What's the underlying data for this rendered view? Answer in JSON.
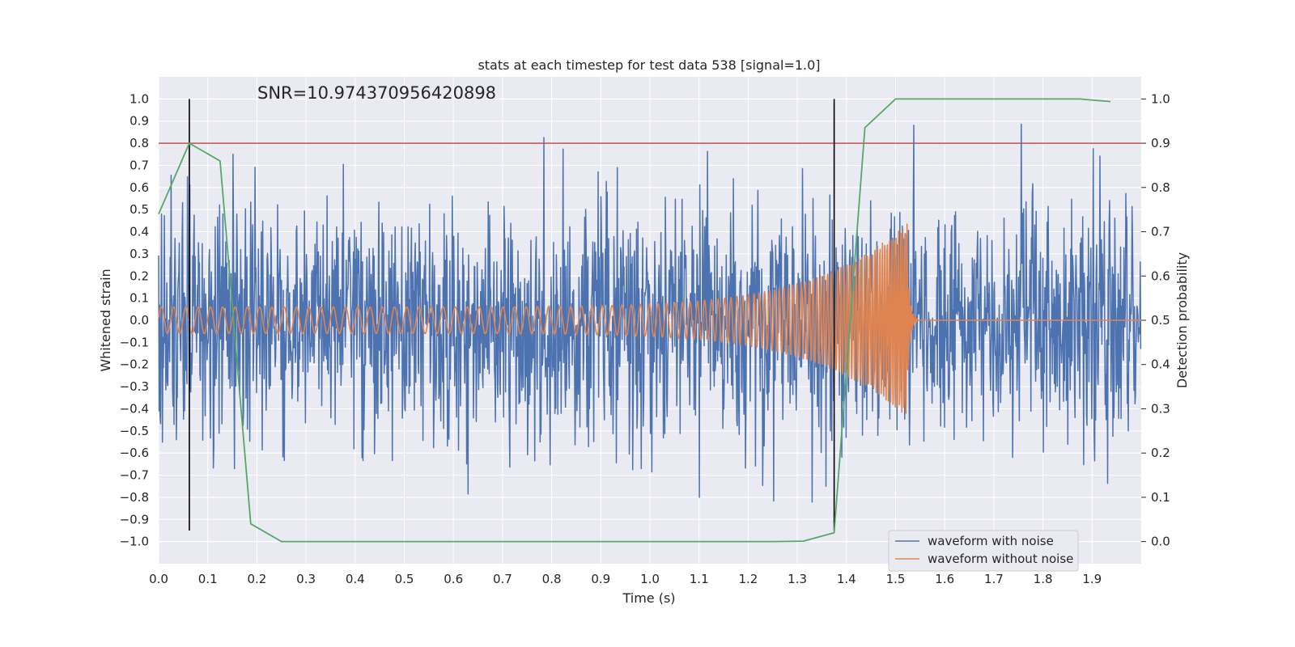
{
  "chart_data": {
    "type": "line",
    "title": "stats at each timestep for test data 538 [signal=1.0]",
    "xlabel": "Time (s)",
    "ylabel": "Whitened strain",
    "ylabel_right": "Detection probability",
    "annotation": "SNR=10.974370956420898",
    "xlim": [
      0.0,
      2.0
    ],
    "ylim": [
      -1.1,
      1.1
    ],
    "ylim_right": [
      -0.05,
      1.05
    ],
    "x_ticks": [
      "0.0",
      "0.1",
      "0.2",
      "0.3",
      "0.4",
      "0.5",
      "0.6",
      "0.7",
      "0.8",
      "0.9",
      "1.0",
      "1.1",
      "1.2",
      "1.3",
      "1.4",
      "1.5",
      "1.6",
      "1.7",
      "1.8",
      "1.9"
    ],
    "y_ticks": [
      "1.0",
      "0.9",
      "0.8",
      "0.7",
      "0.6",
      "0.5",
      "0.4",
      "0.3",
      "0.2",
      "0.1",
      "0.0",
      "−0.1",
      "−0.2",
      "−0.3",
      "−0.4",
      "−0.5",
      "−0.6",
      "−0.7",
      "−0.8",
      "−0.9",
      "−1.0"
    ],
    "y_ticks_right": [
      "1.0",
      "0.9",
      "0.8",
      "0.7",
      "0.6",
      "0.5",
      "0.4",
      "0.3",
      "0.2",
      "0.1",
      "0.0"
    ],
    "grid": true,
    "legend_position": "lower-right",
    "threshold_line": {
      "y_right": 0.9,
      "color": "#c44e52"
    },
    "vertical_lines": [
      {
        "x": 0.0625,
        "color": "#000000"
      },
      {
        "x": 1.375,
        "color": "#000000"
      }
    ],
    "noisy_waveform": {
      "name": "waveform with noise",
      "color": "#4c72b0",
      "samples": 2048,
      "amplitude_rms": 0.26,
      "peak_max": 0.98,
      "peak_min": -0.95
    },
    "clean_waveform": {
      "name": "waveform without noise",
      "color": "#dd8452",
      "start_amplitude": 0.06,
      "peak_amplitude": 0.44,
      "merger_time": 1.525,
      "start_freq_hz": 40,
      "end_freq_hz": 240
    },
    "detection_probability": {
      "color": "#55a868",
      "x": [
        0.0,
        0.0625,
        0.125,
        0.1875,
        0.25,
        0.3125,
        0.375,
        0.4375,
        0.5,
        0.5625,
        0.625,
        0.6875,
        0.75,
        0.8125,
        0.875,
        0.9375,
        1.0,
        1.0625,
        1.125,
        1.1875,
        1.25,
        1.3125,
        1.375,
        1.4375,
        1.5,
        1.5625,
        1.625,
        1.6875,
        1.75,
        1.8125,
        1.875,
        1.9375
      ],
      "y": [
        0.74,
        0.9,
        0.86,
        0.04,
        0.0,
        0.0,
        0.0,
        0.0,
        0.0,
        0.0,
        0.0,
        0.0,
        0.0,
        0.0,
        0.0,
        0.0,
        0.0,
        0.0,
        0.0,
        0.0,
        0.0,
        0.001,
        0.02,
        0.935,
        1.0,
        1.0,
        1.0,
        1.0,
        1.0,
        1.0,
        1.0,
        0.994
      ]
    }
  }
}
